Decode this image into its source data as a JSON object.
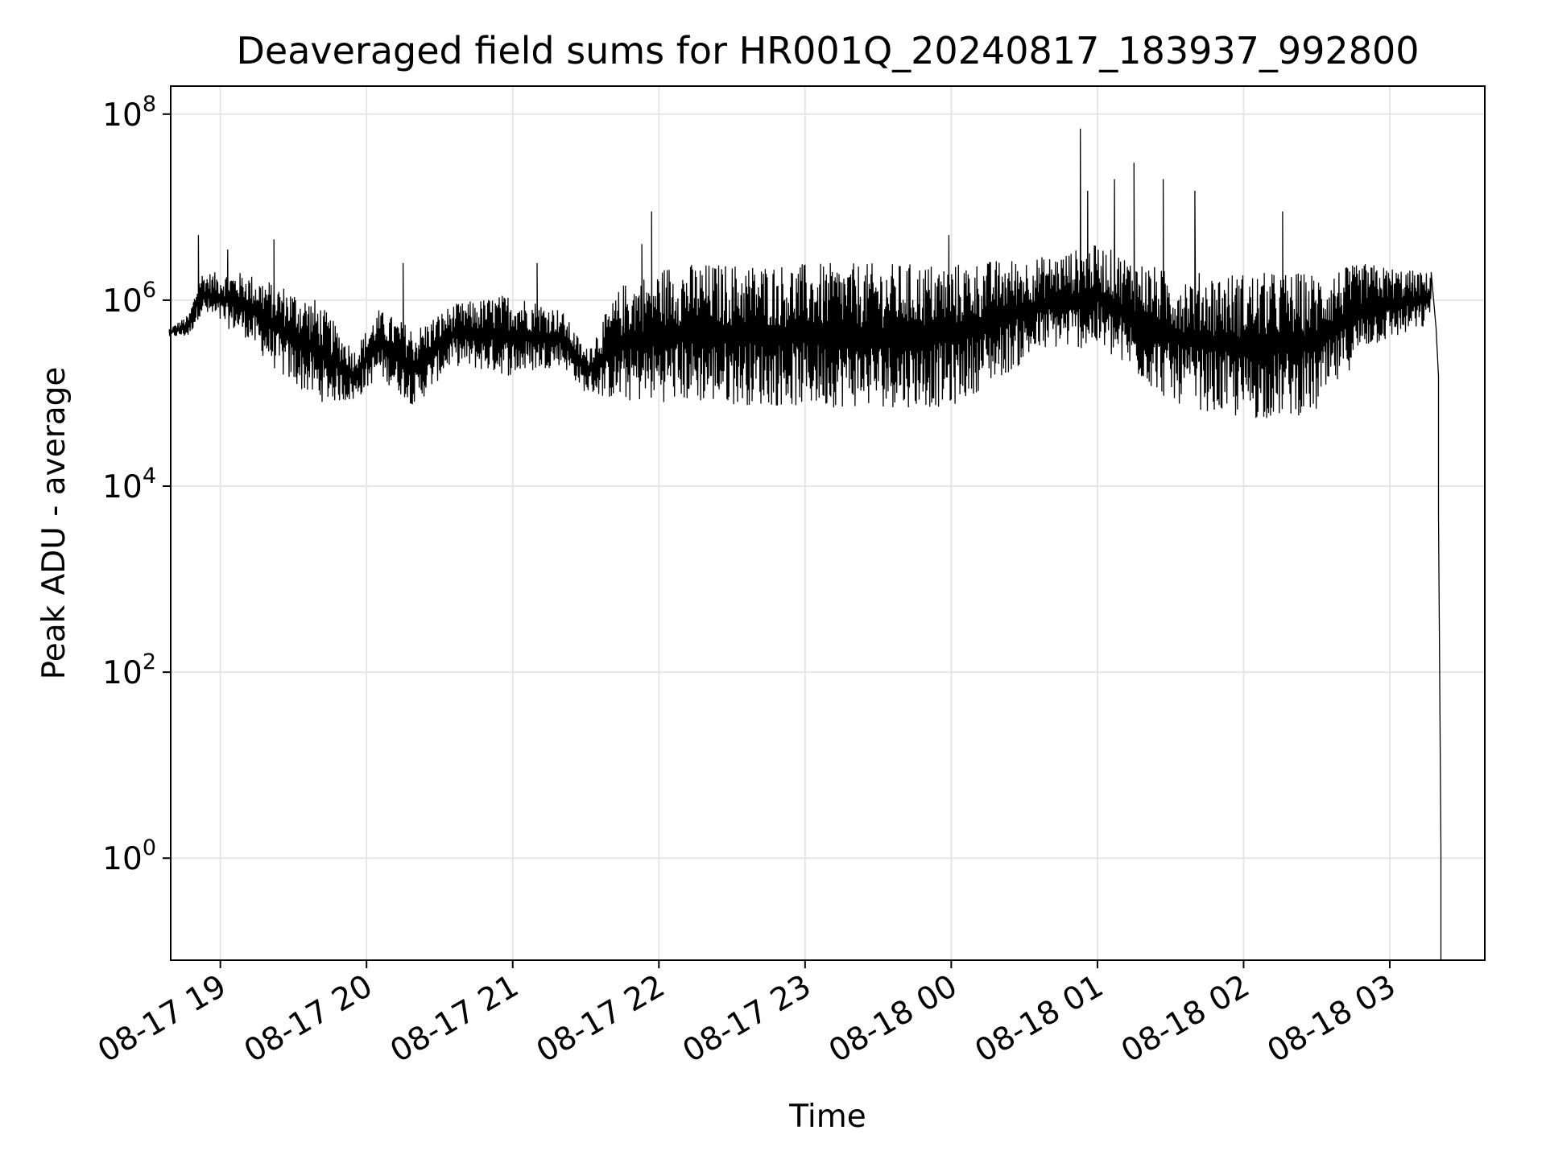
{
  "chart_data": {
    "type": "line",
    "title": "Deaveraged field sums for HR001Q_20240817_183937_992800",
    "xlabel": "Time",
    "ylabel": "Peak ADU - average",
    "yscale": "log",
    "ylim": [
      0.08,
      200000000.0
    ],
    "xlim": [
      "2024-08-17 18:39:37",
      "2024-08-18 03:39:00"
    ],
    "grid": true,
    "line_color": "#000000",
    "x_ticks": [
      {
        "label": "08-17 19",
        "t": "2024-08-17 19:00"
      },
      {
        "label": "08-17 20",
        "t": "2024-08-17 20:00"
      },
      {
        "label": "08-17 21",
        "t": "2024-08-17 21:00"
      },
      {
        "label": "08-17 22",
        "t": "2024-08-17 22:00"
      },
      {
        "label": "08-17 23",
        "t": "2024-08-17 23:00"
      },
      {
        "label": "08-18 00",
        "t": "2024-08-18 00:00"
      },
      {
        "label": "08-18 01",
        "t": "2024-08-18 01:00"
      },
      {
        "label": "08-18 02",
        "t": "2024-08-18 02:00"
      },
      {
        "label": "08-18 03",
        "t": "2024-08-18 03:00"
      }
    ],
    "y_ticks": [
      {
        "base": "10",
        "exp": "0",
        "value": 1
      },
      {
        "base": "10",
        "exp": "2",
        "value": 100
      },
      {
        "base": "10",
        "exp": "4",
        "value": 10000
      },
      {
        "base": "10",
        "exp": "6",
        "value": 1000000
      },
      {
        "base": "10",
        "exp": "8",
        "value": 100000000
      }
    ],
    "series": [
      {
        "style": "dense oscillating line",
        "baseline": [
          {
            "t": "2024-08-17 18:39",
            "low": 400000,
            "high": 500000
          },
          {
            "t": "2024-08-17 18:47",
            "low": 400000,
            "high": 700000
          },
          {
            "t": "2024-08-17 18:52",
            "low": 700000,
            "high": 2000000
          },
          {
            "t": "2024-08-17 19:10",
            "low": 400000,
            "high": 2000000
          },
          {
            "t": "2024-08-17 19:25",
            "low": 150000,
            "high": 1500000
          },
          {
            "t": "2024-08-17 19:40",
            "low": 80000,
            "high": 1000000
          },
          {
            "t": "2024-08-17 19:55",
            "low": 80000,
            "high": 300000
          },
          {
            "t": "2024-08-17 20:05",
            "low": 150000,
            "high": 800000
          },
          {
            "t": "2024-08-17 20:20",
            "low": 70000,
            "high": 500000
          },
          {
            "t": "2024-08-17 20:35",
            "low": 200000,
            "high": 900000
          },
          {
            "t": "2024-08-17 21:00",
            "low": 150000,
            "high": 1200000
          },
          {
            "t": "2024-08-17 21:20",
            "low": 200000,
            "high": 800000
          },
          {
            "t": "2024-08-17 21:30",
            "low": 100000,
            "high": 300000
          },
          {
            "t": "2024-08-17 21:45",
            "low": 80000,
            "high": 1500000
          },
          {
            "t": "2024-08-17 22:05",
            "low": 80000,
            "high": 2500000
          },
          {
            "t": "2024-08-17 23:00",
            "low": 70000,
            "high": 2500000
          },
          {
            "t": "2024-08-18 00:00",
            "low": 70000,
            "high": 2500000
          },
          {
            "t": "2024-08-18 00:40",
            "low": 300000,
            "high": 3000000
          },
          {
            "t": "2024-08-18 01:00",
            "low": 300000,
            "high": 4000000
          },
          {
            "t": "2024-08-18 01:30",
            "low": 80000,
            "high": 2000000
          },
          {
            "t": "2024-08-18 02:00",
            "low": 50000,
            "high": 2000000
          },
          {
            "t": "2024-08-18 02:30",
            "low": 60000,
            "high": 2000000
          },
          {
            "t": "2024-08-18 02:50",
            "low": 300000,
            "high": 2500000
          },
          {
            "t": "2024-08-18 03:15",
            "low": 500000,
            "high": 2000000
          },
          {
            "t": "2024-08-18 03:17",
            "low": 800000,
            "high": 2000000
          }
        ],
        "spikes": [
          {
            "t": "2024-08-17 18:51",
            "y": 5000000
          },
          {
            "t": "2024-08-17 19:03",
            "y": 3500000
          },
          {
            "t": "2024-08-17 19:22",
            "y": 4500000
          },
          {
            "t": "2024-08-17 20:15",
            "y": 2500000
          },
          {
            "t": "2024-08-17 21:10",
            "y": 2500000
          },
          {
            "t": "2024-08-17 21:53",
            "y": 4000000
          },
          {
            "t": "2024-08-17 21:57",
            "y": 9000000
          },
          {
            "t": "2024-08-17 23:59",
            "y": 5000000
          },
          {
            "t": "2024-08-18 00:53",
            "y": 70000000
          },
          {
            "t": "2024-08-18 00:56",
            "y": 15000000
          },
          {
            "t": "2024-08-18 01:07",
            "y": 20000000
          },
          {
            "t": "2024-08-18 01:15",
            "y": 30000000
          },
          {
            "t": "2024-08-18 01:27",
            "y": 20000000
          },
          {
            "t": "2024-08-18 01:40",
            "y": 15000000
          },
          {
            "t": "2024-08-18 02:16",
            "y": 9000000
          }
        ],
        "tail": [
          {
            "t": "2024-08-18 03:17",
            "y": 2000000
          },
          {
            "t": "2024-08-18 03:19",
            "y": 500000
          },
          {
            "t": "2024-08-18 03:20",
            "y": 150000
          },
          {
            "t": "2024-08-18 03:20",
            "y": 5000
          },
          {
            "t": "2024-08-18 03:21",
            "y": 1.3
          },
          {
            "t": "2024-08-18 03:21",
            "y": 0.08
          }
        ]
      }
    ]
  }
}
